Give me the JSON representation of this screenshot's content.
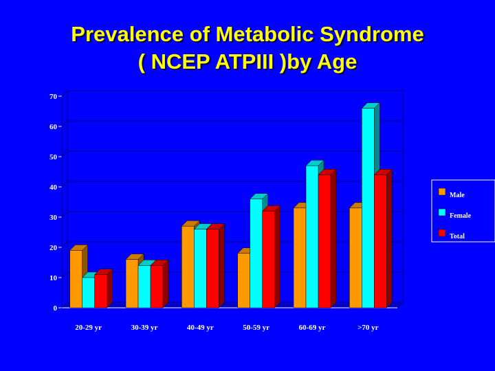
{
  "title_line1": "Prevalence of Metabolic Syndrome",
  "title_line2": "( NCEP ATPIII )by Age",
  "colors": {
    "Male": "#ff9900",
    "Female": "#00ffff",
    "Total": "#ff0000",
    "background": "#0000ff"
  },
  "chart_data": {
    "type": "bar",
    "categories": [
      "20-29 yr",
      "30-39 yr",
      "40-49 yr",
      "50-59 yr",
      "60-69 yr",
      ">70 yr"
    ],
    "series": [
      {
        "name": "Male",
        "values": [
          19,
          16,
          27,
          18,
          33,
          33
        ]
      },
      {
        "name": "Female",
        "values": [
          10,
          14,
          26,
          36,
          47,
          66
        ]
      },
      {
        "name": "Total",
        "values": [
          11,
          14,
          26,
          32,
          44,
          44
        ]
      }
    ],
    "yticks": [
      0,
      10,
      20,
      30,
      40,
      50,
      60,
      70
    ],
    "ylim": [
      0,
      70
    ],
    "grid": true,
    "legend": "right"
  }
}
